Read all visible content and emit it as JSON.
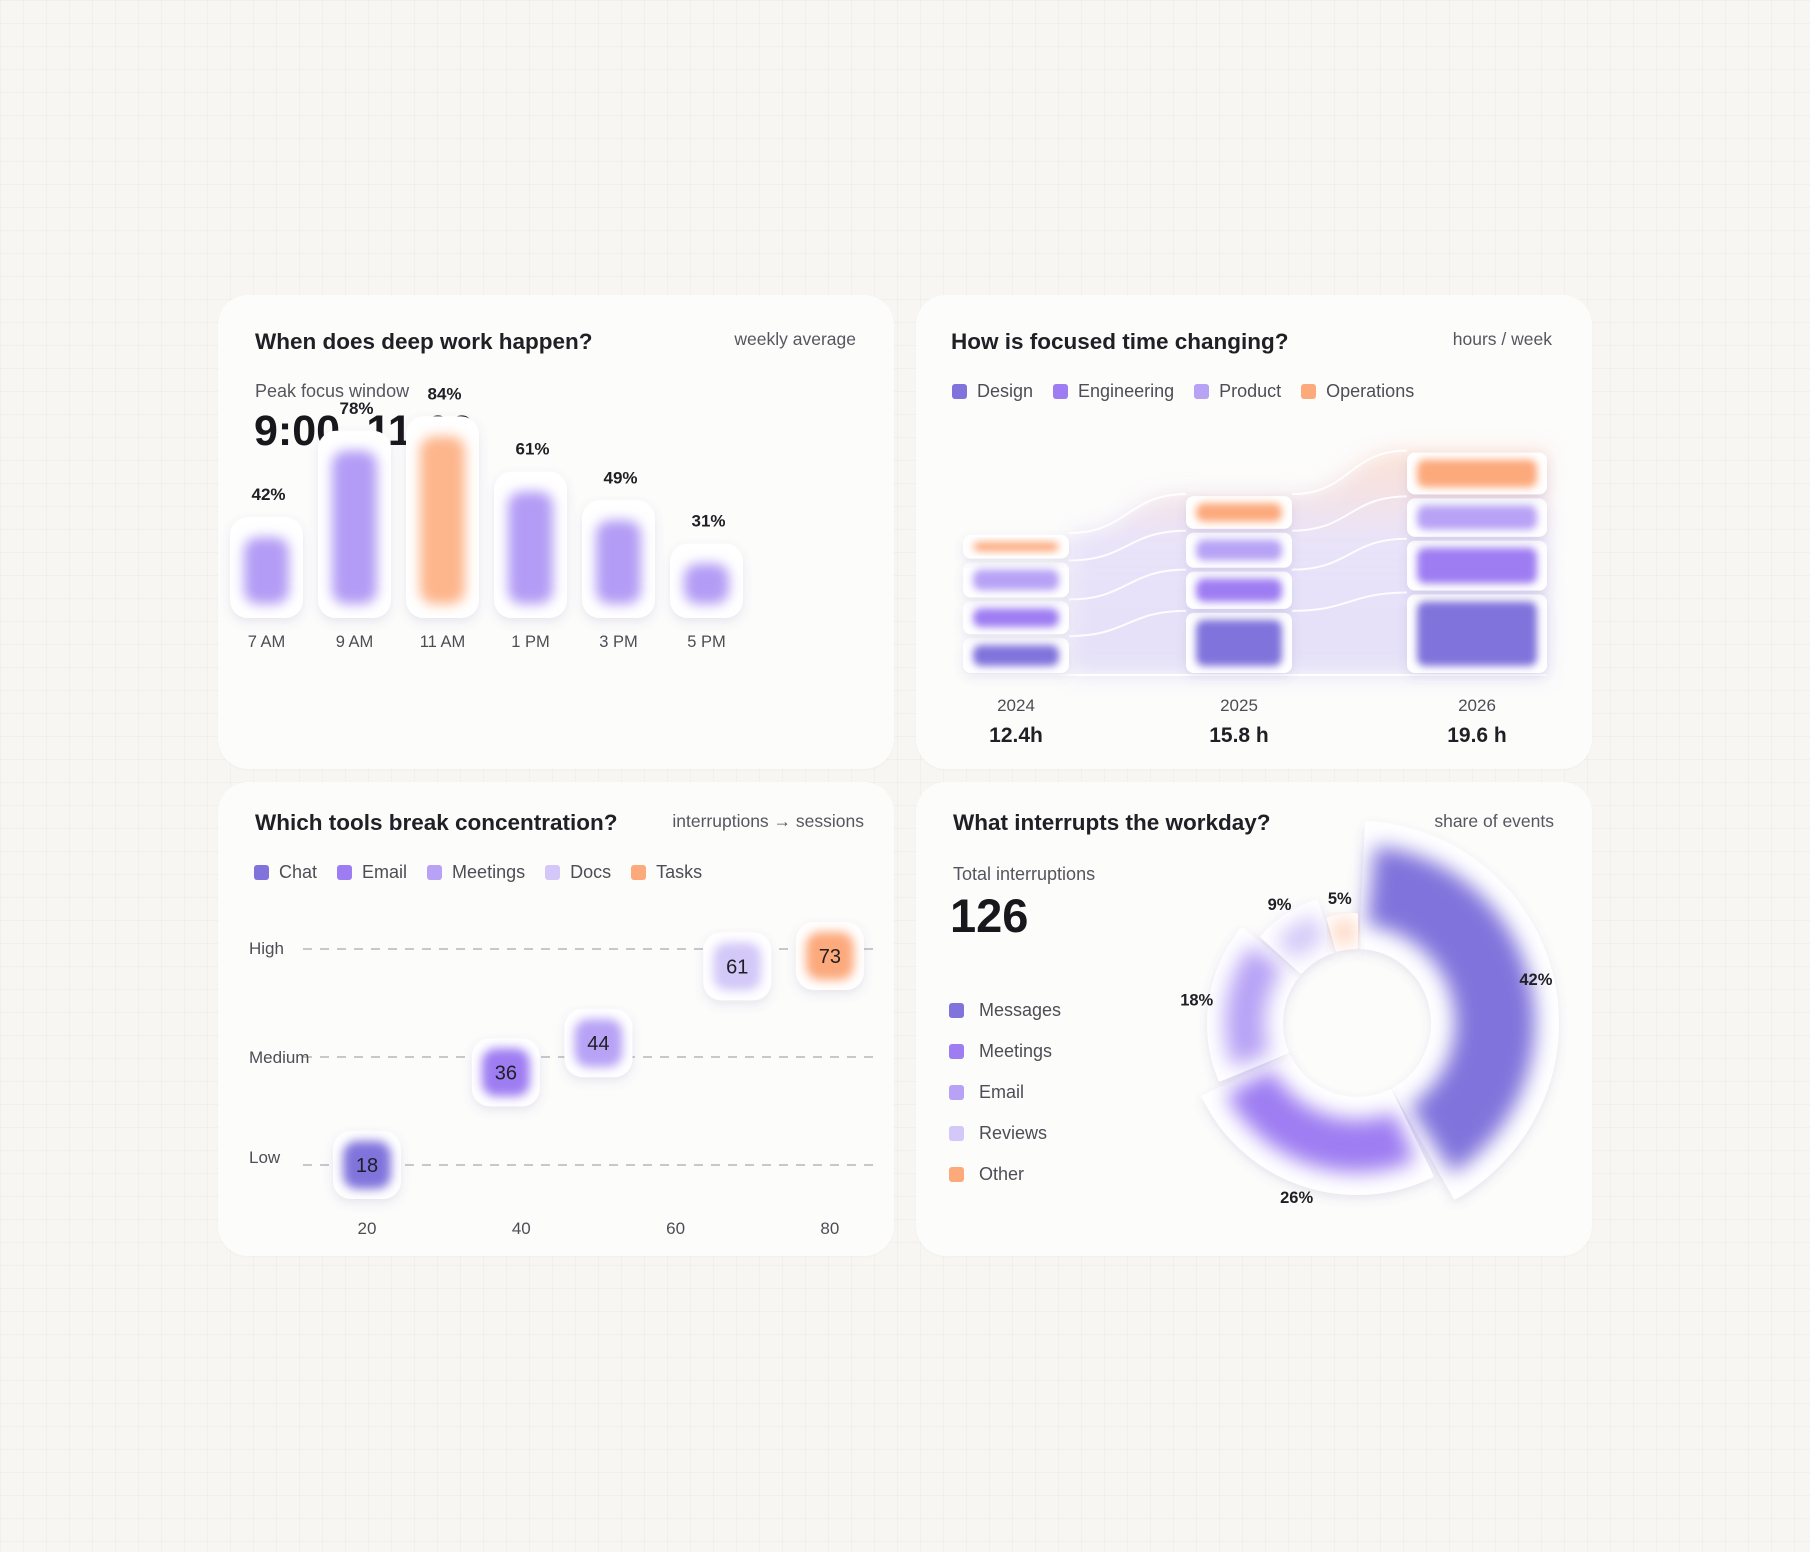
{
  "colors": {
    "design": "#8073dc",
    "engineering": "#9e7df2",
    "product": "#b7a2f5",
    "operations": "#fca97c",
    "docs": "#d3c8f8",
    "bar_default": "#b39cf5",
    "bar_peak": "#fdb58b"
  },
  "cards": {
    "deep_work": {
      "title": "When does deep work happen?",
      "subtitle": "weekly average",
      "peak_label": "Peak focus window",
      "peak_value": "9:00 -11:00"
    },
    "focused_time": {
      "title": "How is focused time changing?",
      "subtitle": "hours / week"
    },
    "tools": {
      "title": "Which tools break concentration?",
      "subtitle": "interruptions → sessions"
    },
    "interrupts": {
      "title": "What interrupts the workday?",
      "subtitle": "share of events",
      "total_label": "Total interruptions",
      "total_value": "126"
    }
  },
  "chart_data": [
    {
      "id": "deep-work",
      "type": "bar",
      "categories": [
        "7 AM",
        "9 AM",
        "11 AM",
        "1 PM",
        "3 PM",
        "5 PM"
      ],
      "values": [
        42,
        78,
        84,
        61,
        49,
        31
      ],
      "value_labels": [
        "42%",
        "78%",
        "84%",
        "61%",
        "49%",
        "31%"
      ],
      "highlight_index": 2,
      "ylim": [
        0,
        100
      ]
    },
    {
      "id": "focused-time",
      "type": "bar",
      "stacked": true,
      "legend": [
        "Design",
        "Engineering",
        "Product",
        "Operations"
      ],
      "categories": [
        "2024",
        "2025",
        "2026"
      ],
      "totals_labels": [
        "12.4h",
        "15.8 h",
        "19.6 h"
      ],
      "totals": [
        12.4,
        15.8,
        19.6
      ],
      "series": [
        {
          "name": "Design",
          "values": [
            3.4,
            5.6,
            7.2
          ]
        },
        {
          "name": "Engineering",
          "values": [
            3.2,
            3.6,
            4.7
          ]
        },
        {
          "name": "Product",
          "values": [
            3.4,
            3.4,
            3.7
          ]
        },
        {
          "name": "Operations",
          "values": [
            2.4,
            3.2,
            4.0
          ]
        }
      ]
    },
    {
      "id": "tools",
      "type": "scatter",
      "legend": [
        "Chat",
        "Email",
        "Meetings",
        "Docs",
        "Tasks"
      ],
      "y_categories": [
        "High",
        "Medium",
        "Low"
      ],
      "x_ticks": [
        "20",
        "40",
        "60",
        "80"
      ],
      "xlim": [
        13,
        83
      ],
      "points": [
        {
          "x": 20,
          "y": 1.0,
          "label": "18",
          "color": "#8073dc"
        },
        {
          "x": 38,
          "y": 2.2,
          "label": "36",
          "color": "#9e7df2"
        },
        {
          "x": 50,
          "y": 2.6,
          "label": "44",
          "color": "#b7a2f5"
        },
        {
          "x": 68,
          "y": 3.7,
          "label": "61",
          "color": "#d3c8f8"
        },
        {
          "x": 80,
          "y": 3.85,
          "label": "73",
          "color": "#fca97c"
        }
      ],
      "y_levels": {
        "Low": 1,
        "Medium": 2.4,
        "High": 3.95
      }
    },
    {
      "id": "interrupts",
      "type": "pie",
      "donut": true,
      "slices": [
        {
          "name": "Messages",
          "value": 42,
          "label": "42%"
        },
        {
          "name": "Meetings",
          "value": 26,
          "label": "26%"
        },
        {
          "name": "Email",
          "value": 18,
          "label": "18%"
        },
        {
          "name": "Reviews",
          "value": 9,
          "label": "9%"
        },
        {
          "name": "Other",
          "value": 5,
          "label": "5%"
        }
      ]
    }
  ]
}
